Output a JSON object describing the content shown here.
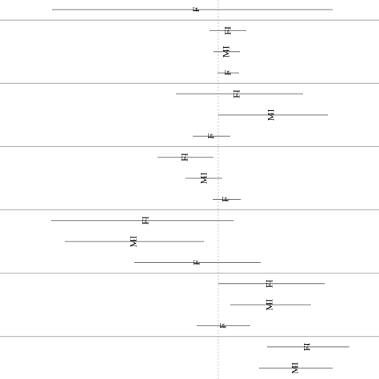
{
  "chart_data": {
    "type": "forest",
    "xlim": [
      -2.73,
      2.01
    ],
    "refline": 0,
    "groups": [
      {
        "rows": [
          {
            "label": "F",
            "estimate": -0.27,
            "low": -2.08,
            "high": 1.43
          }
        ]
      },
      {
        "rows": [
          {
            "label": "FI",
            "estimate": 0.13,
            "low": -0.11,
            "high": 0.35
          },
          {
            "label": "MI",
            "estimate": 0.11,
            "low": -0.06,
            "high": 0.27
          },
          {
            "label": "F",
            "estimate": 0.13,
            "low": -0.01,
            "high": 0.26
          }
        ]
      },
      {
        "rows": [
          {
            "label": "FI",
            "estimate": 0.24,
            "low": -0.53,
            "high": 1.06
          },
          {
            "label": "MI",
            "estimate": 0.67,
            "low": 0.0,
            "high": 1.37
          },
          {
            "label": "F",
            "estimate": -0.08,
            "low": -0.32,
            "high": 0.15
          }
        ]
      },
      {
        "rows": [
          {
            "label": "FI",
            "estimate": -0.41,
            "low": -0.76,
            "high": -0.06
          },
          {
            "label": "MI",
            "estimate": -0.17,
            "low": -0.41,
            "high": 0.05
          },
          {
            "label": "F",
            "estimate": 0.1,
            "low": -0.07,
            "high": 0.28
          }
        ]
      },
      {
        "rows": [
          {
            "label": "FI",
            "estimate": -0.9,
            "low": -2.09,
            "high": 0.19
          },
          {
            "label": "MI",
            "estimate": -1.05,
            "low": -1.92,
            "high": -0.18
          },
          {
            "label": "F",
            "estimate": -0.26,
            "low": -1.05,
            "high": 0.53
          }
        ]
      },
      {
        "rows": [
          {
            "label": "FI",
            "estimate": 0.65,
            "low": 0.0,
            "high": 1.33
          },
          {
            "label": "MI",
            "estimate": 0.65,
            "low": 0.15,
            "high": 1.16
          },
          {
            "label": "F",
            "estimate": 0.07,
            "low": -0.27,
            "high": 0.4
          }
        ]
      },
      {
        "rows": [
          {
            "label": "FI",
            "estimate": 1.12,
            "low": 0.61,
            "high": 1.64
          },
          {
            "label": "MI",
            "estimate": 0.97,
            "low": 0.51,
            "high": 1.43
          }
        ]
      }
    ]
  }
}
